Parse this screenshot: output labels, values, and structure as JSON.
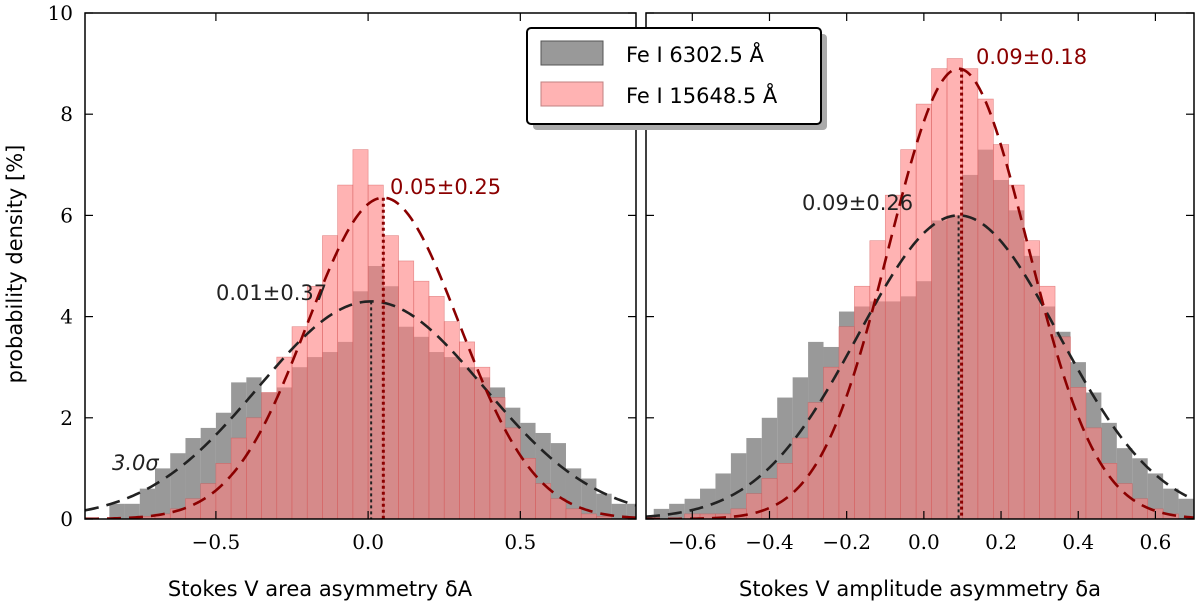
{
  "chart_data": [
    {
      "type": "bar",
      "panel": "left",
      "xlabel": "Stokes V area asymmetry δA",
      "ylabel": "probability density [%]",
      "xlim": [
        -0.93,
        0.88
      ],
      "ylim": [
        0,
        10
      ],
      "xticks": [
        -0.5,
        0.0,
        0.5
      ],
      "xtick_labels": [
        "−0.5",
        "0.0",
        "0.5"
      ],
      "yticks": [
        0,
        2,
        4,
        6,
        8,
        10
      ],
      "ytick_labels": [
        "0",
        "2",
        "4",
        "6",
        "8",
        "10"
      ],
      "bin_start": -0.85,
      "bin_width": 0.05,
      "series": [
        {
          "name": "Fe I 6302.5 Å",
          "color": "#808080",
          "values": [
            0.3,
            0.3,
            0.6,
            1.0,
            1.3,
            1.6,
            1.8,
            2.1,
            2.7,
            2.8,
            2.5,
            2.6,
            3.0,
            3.2,
            3.3,
            3.5,
            4.5,
            5.0,
            4.6,
            3.8,
            3.6,
            3.3,
            3.2,
            3.0,
            2.8,
            2.6,
            2.2,
            1.9,
            1.7,
            1.5,
            1.0,
            0.8,
            0.5,
            0.3,
            0.3
          ]
        },
        {
          "name": "Fe I 15648.5 Å",
          "color": "#ff8080",
          "values": [
            0.0,
            0.0,
            0.05,
            0.1,
            0.2,
            0.4,
            0.7,
            1.1,
            1.6,
            2.0,
            2.5,
            3.2,
            3.8,
            4.6,
            5.6,
            6.6,
            7.3,
            6.6,
            5.6,
            5.1,
            4.7,
            4.4,
            3.9,
            3.5,
            3.0,
            2.4,
            1.8,
            1.2,
            0.7,
            0.4,
            0.2,
            0.1,
            0.05,
            0.0,
            0.0
          ]
        }
      ],
      "fits": [
        {
          "series": "Fe I 6302.5 Å",
          "mean": 0.01,
          "sigma": 0.37,
          "peak": 4.3,
          "color": "#222222"
        },
        {
          "series": "Fe I 15648.5 Å",
          "mean": 0.05,
          "sigma": 0.25,
          "peak": 6.35,
          "color": "#8b0000"
        }
      ],
      "annotations": [
        {
          "text": "0.01±0.37",
          "color": "black"
        },
        {
          "text": "0.05±0.25",
          "color": "red"
        },
        {
          "text": "3.0σ",
          "color": "black"
        }
      ]
    },
    {
      "type": "bar",
      "panel": "right",
      "xlabel": "Stokes V amplitude asymmetry δa",
      "xlim": [
        -0.72,
        0.7
      ],
      "ylim": [
        0,
        10
      ],
      "xticks": [
        -0.6,
        -0.4,
        -0.2,
        0.0,
        0.2,
        0.4,
        0.6
      ],
      "xtick_labels": [
        "−0.6",
        "−0.4",
        "−0.2",
        "0.0",
        "0.2",
        "0.4",
        "0.6"
      ],
      "yticks": [
        0,
        2,
        4,
        6,
        8,
        10
      ],
      "bin_start": -0.7,
      "bin_width": 0.04,
      "series": [
        {
          "name": "Fe I 6302.5 Å",
          "color": "#808080",
          "values": [
            0.2,
            0.3,
            0.4,
            0.6,
            0.9,
            1.3,
            1.6,
            2.0,
            2.4,
            2.8,
            3.5,
            3.4,
            4.1,
            4.2,
            4.3,
            4.3,
            4.4,
            4.7,
            5.9,
            6.0,
            6.8,
            7.3,
            6.7,
            6.1,
            5.2,
            4.2,
            3.7,
            3.1,
            2.5,
            1.9,
            1.4,
            1.2,
            0.9,
            0.6,
            0.4,
            0.2
          ]
        },
        {
          "name": "Fe I 15648.5 Å",
          "color": "#ff8080",
          "values": [
            0.0,
            0.0,
            0.1,
            0.1,
            0.1,
            0.2,
            0.5,
            0.8,
            1.1,
            1.6,
            2.3,
            3.0,
            3.8,
            4.6,
            5.5,
            6.4,
            7.3,
            8.2,
            8.9,
            9.1,
            8.9,
            8.3,
            7.4,
            6.6,
            5.5,
            4.6,
            3.6,
            2.6,
            1.8,
            1.1,
            0.7,
            0.4,
            0.2,
            0.1,
            0.0,
            0.0
          ]
        }
      ],
      "fits": [
        {
          "series": "Fe I 6302.5 Å",
          "mean": 0.09,
          "sigma": 0.26,
          "peak": 6.0,
          "color": "#222222"
        },
        {
          "series": "Fe I 15648.5 Å",
          "mean": 0.09,
          "sigma": 0.18,
          "peak": 8.9,
          "color": "#8b0000"
        }
      ],
      "annotations": [
        {
          "text": "0.09±0.26",
          "color": "black"
        },
        {
          "text": "0.09±0.18",
          "color": "red"
        }
      ]
    }
  ],
  "legend": {
    "placement": "top-center",
    "items": [
      {
        "label": "Fe I 6302.5 Å",
        "color": "#808080"
      },
      {
        "label": "Fe I 15648.5 Å",
        "color": "#ff8080"
      }
    ]
  }
}
